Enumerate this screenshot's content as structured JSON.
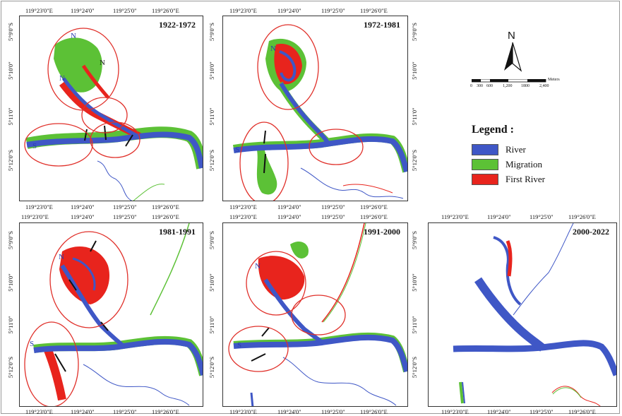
{
  "panels": [
    {
      "title": "1922-1972",
      "letters": [
        "N",
        "N",
        "N",
        "S"
      ]
    },
    {
      "title": "1972-1981",
      "letters": [
        "N",
        "S"
      ]
    },
    {
      "title": "1981-1991",
      "letters": [
        "N",
        "S"
      ]
    },
    {
      "title": "1991-2000",
      "letters": [
        "N",
        "S"
      ]
    },
    {
      "title": "2000-2022",
      "letters": []
    }
  ],
  "coords": {
    "lon": [
      "119°23'0\"E",
      "119°24'0\"",
      "119°25'0\"",
      "119°26'0\"E"
    ],
    "lat": [
      "5°9'0\"S",
      "5°10'0\"",
      "5°11'0\"",
      "5°12'0\"S"
    ]
  },
  "north_arrow": {
    "label": "N"
  },
  "scale": {
    "ticks": [
      "0",
      "300",
      "600",
      "1,200",
      "1800",
      "2,400"
    ],
    "unit": "Meters"
  },
  "legend": {
    "title": "Legend :",
    "items": [
      {
        "label": "River",
        "color": "#3f57c6"
      },
      {
        "label": "Migration",
        "color": "#5cc136"
      },
      {
        "label": "First River",
        "color": "#e8241d"
      }
    ]
  },
  "colors": {
    "river": "#3f57c6",
    "migration": "#5cc136",
    "first_river": "#e8241d",
    "ellipse": "#e0302a"
  }
}
